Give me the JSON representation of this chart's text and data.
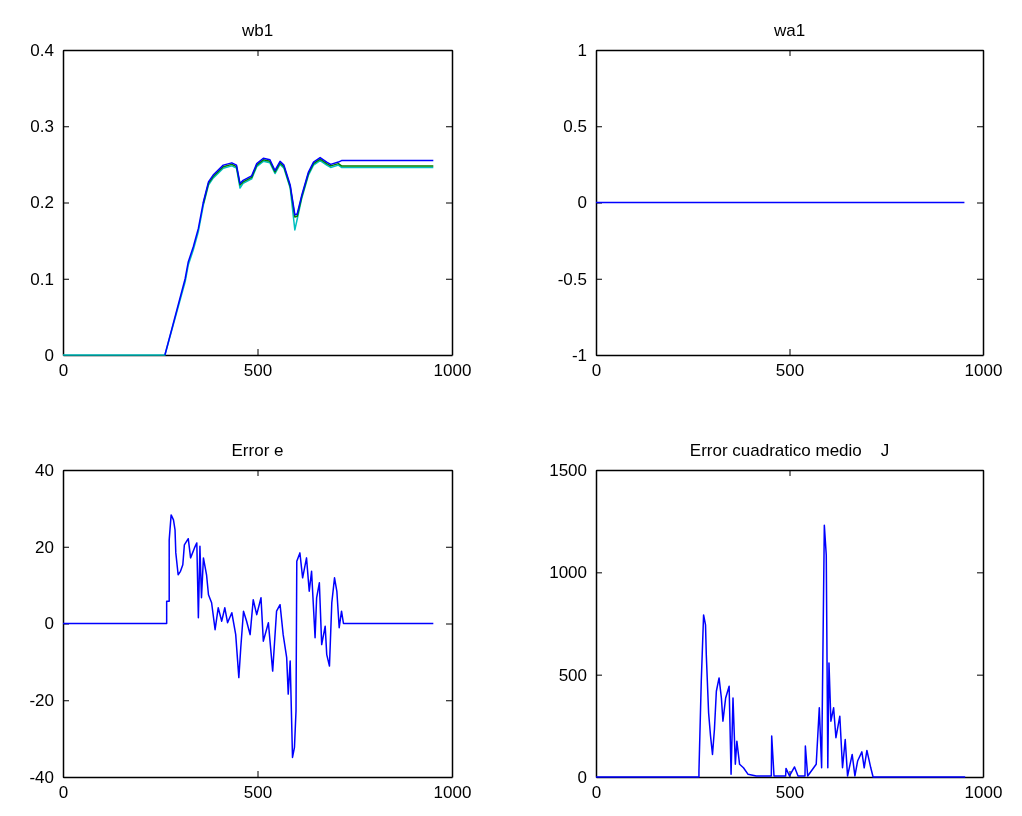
{
  "chart_data": [
    {
      "type": "line",
      "title": "wb1",
      "x": [
        0,
        262,
        314,
        322,
        335,
        348,
        361,
        374,
        386,
        412,
        434,
        446,
        455,
        463,
        485,
        498,
        515,
        532,
        545,
        558,
        568,
        584,
        596,
        602,
        614,
        631,
        644,
        661,
        678,
        688,
        708,
        716,
        952
      ],
      "xlim": [
        0,
        1000
      ],
      "xticks": [
        0,
        500,
        1000
      ],
      "ylim": [
        0,
        0.4
      ],
      "yticks": [
        0,
        0.1,
        0.2,
        0.3,
        0.4
      ],
      "series": [
        {
          "color": "#00bfbf",
          "values": [
            0,
            0,
            0.096,
            0.118,
            0.138,
            0.162,
            0.197,
            0.223,
            0.232,
            0.245,
            0.248,
            0.245,
            0.219,
            0.225,
            0.231,
            0.247,
            0.254,
            0.252,
            0.238,
            0.25,
            0.245,
            0.219,
            0.164,
            0.178,
            0.206,
            0.236,
            0.249,
            0.255,
            0.249,
            0.246,
            0.249,
            0.246,
            0.246
          ]
        },
        {
          "color": "#008000",
          "values": [
            null,
            null,
            null,
            null,
            null,
            null,
            0.199,
            0.225,
            0.234,
            0.247,
            0.25,
            0.247,
            0.223,
            0.227,
            0.233,
            0.249,
            0.256,
            0.254,
            0.24,
            0.252,
            0.247,
            0.221,
            0.181,
            0.182,
            0.208,
            0.238,
            0.251,
            0.257,
            0.251,
            0.248,
            0.251,
            0.248,
            0.248
          ]
        },
        {
          "color": "#0000ff",
          "values": [
            null,
            0,
            0.1,
            0.122,
            0.142,
            0.166,
            0.201,
            0.227,
            0.236,
            0.249,
            0.252,
            0.249,
            0.225,
            0.229,
            0.235,
            0.251,
            0.258,
            0.256,
            0.242,
            0.254,
            0.249,
            0.223,
            0.184,
            0.185,
            0.21,
            0.24,
            0.253,
            0.259,
            0.253,
            0.25,
            0.253,
            0.255,
            0.255
          ]
        }
      ]
    },
    {
      "type": "line",
      "title": "wa1",
      "x": [
        0,
        952
      ],
      "xlim": [
        0,
        1000
      ],
      "xticks": [
        0,
        500,
        1000
      ],
      "ylim": [
        -1,
        1
      ],
      "yticks": [
        -1,
        -0.5,
        0,
        0.5,
        1
      ],
      "series": [
        {
          "color": "#0000ff",
          "values": [
            0,
            0
          ]
        }
      ]
    },
    {
      "type": "line",
      "title": "Error e",
      "xlim": [
        0,
        1000
      ],
      "xticks": [
        0,
        500,
        1000
      ],
      "ylim": [
        -40,
        40
      ],
      "yticks": [
        -40,
        -20,
        0,
        20,
        40
      ],
      "x": [
        0,
        266.5,
        266.5,
        273,
        273,
        278,
        284,
        288,
        290,
        296,
        302,
        308,
        312,
        322,
        328,
        338,
        344,
        348,
        352,
        356,
        361,
        369,
        374,
        382,
        391,
        399,
        408,
        416,
        423,
        434,
        444,
        452,
        457,
        464,
        472,
        481,
        489,
        498,
        509,
        515,
        528,
        539,
        549,
        558,
        566,
        575,
        579,
        584,
        590,
        595,
        599,
        601,
        609,
        616,
        626,
        633,
        639,
        648,
        652,
        659,
        665,
        674,
        678,
        685,
        691,
        698,
        704,
        710,
        716,
        721,
        952
      ],
      "series": [
        {
          "color": "#0000ff",
          "values": [
            0,
            0,
            5.8,
            5.8,
            21.8,
            28.3,
            27.0,
            24.4,
            18.4,
            12.7,
            13.6,
            15.3,
            20.5,
            22.1,
            17.1,
            19.7,
            21.0,
            1.5,
            20.1,
            6.7,
            17.1,
            12.7,
            7.5,
            5.4,
            -1.6,
            4.1,
            0.6,
            4.1,
            0.2,
            2.8,
            -2.9,
            -14.1,
            -6.3,
            3.2,
            0.6,
            -2.9,
            6.2,
            2.3,
            6.7,
            -4.6,
            0.2,
            -12.4,
            3.2,
            4.9,
            -2.9,
            -8.9,
            -18.4,
            -9.8,
            -34.9,
            -32.3,
            -22.8,
            16.2,
            18.4,
            11.9,
            17.1,
            8.4,
            13.6,
            -3.7,
            6.7,
            10.6,
            -5.5,
            -0.7,
            -8.1,
            -11.1,
            5.4,
            11.9,
            8.4,
            -1.1,
            3.2,
            0,
            0
          ]
        }
      ]
    },
    {
      "type": "line",
      "title": "Error cuadratico medio    J",
      "xlim": [
        0,
        1000
      ],
      "xticks": [
        0,
        500,
        1000
      ],
      "ylim": [
        0,
        1500
      ],
      "yticks": [
        0,
        500,
        1000,
        1500
      ],
      "x": [
        0,
        266,
        266,
        272,
        278,
        283,
        285,
        291,
        296,
        301,
        306,
        311,
        318,
        324,
        328,
        335,
        344,
        349,
        354,
        360,
        364,
        371,
        381,
        393,
        414,
        453,
        454,
        460,
        490,
        491,
        500,
        513,
        522,
        540,
        541,
        547,
        569,
        577,
        583,
        590,
        595,
        599,
        602,
        607,
        614,
        620,
        630,
        637,
        644,
        650,
        662,
        669,
        676,
        687,
        693,
        700,
        710,
        716,
        954
      ],
      "series": [
        {
          "color": "#0000ff",
          "values": [
            0,
            0,
            29,
            467,
            792,
            743,
            597,
            313,
            200,
            110,
            232,
            419,
            484,
            386,
            273,
            386,
            443,
            13,
            386,
            62,
            175,
            62,
            45,
            13,
            5,
            5,
            200,
            5,
            5,
            42,
            5,
            49,
            5,
            5,
            151,
            5,
            62,
            338,
            45,
            1230,
            1084,
            45,
            557,
            273,
            338,
            192,
            297,
            45,
            183,
            5,
            110,
            5,
            78,
            123,
            45,
            130,
            45,
            0,
            0
          ]
        }
      ]
    }
  ]
}
